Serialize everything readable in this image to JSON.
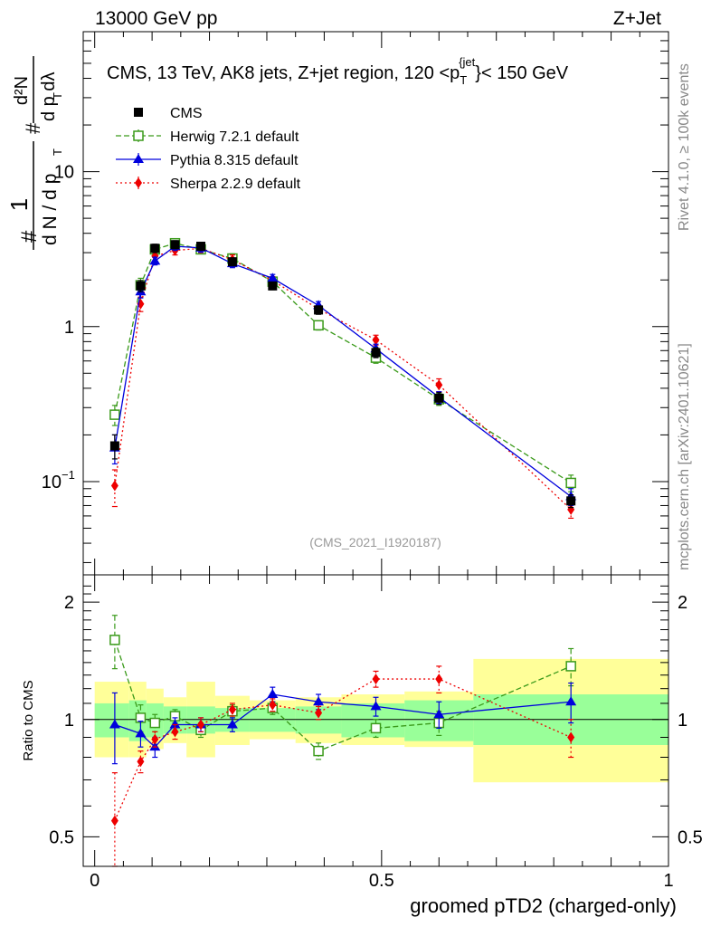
{
  "header": {
    "left": "13000 GeV pp",
    "right": "Z+Jet"
  },
  "side_text": {
    "rivet": "Rivet 4.1.0, ≥ 100k events",
    "site": "mcplots.cern.ch [arXiv:2401.10621]"
  },
  "chart_data": [
    {
      "type": "line",
      "panel": "main",
      "title": "CMS, 13 TeV, AK8 jets, Z+jet region, 120 <p_T^{jet}< 150 GeV",
      "title_parts": {
        "before": "CMS, 13 TeV, AK8 jets, Z+jet region, 120 <p",
        "sub": "T",
        "sup": "{jet",
        "after": "}< 150 GeV"
      },
      "ylabel": "1/(dN/dp_T) # d²N/(dp_T dλ)",
      "ylabel_parts": {
        "frac_num": "1",
        "frac_den": "d N / d p",
        "sub": "T",
        "hash": "#",
        "deriv_num": "d²N",
        "deriv_den": "d p  dλ"
      },
      "yscale": "log",
      "ylim": [
        0.025,
        80
      ],
      "xlim": [
        -0.02,
        1.0
      ],
      "yticks": [
        {
          "v": 0.1,
          "label": "10",
          "sup": "−1"
        },
        {
          "v": 1,
          "label": "1",
          "sup": ""
        },
        {
          "v": 10,
          "label": "10",
          "sup": ""
        }
      ],
      "watermark": "(CMS_2021_I1920187)",
      "legend_position": "top-left",
      "series": [
        {
          "name": "CMS",
          "color": "#000000",
          "marker": "square",
          "line": "none",
          "x": [
            0.035,
            0.08,
            0.105,
            0.14,
            0.185,
            0.24,
            0.31,
            0.39,
            0.49,
            0.6,
            0.83
          ],
          "y": [
            0.17,
            1.83,
            3.2,
            3.38,
            3.3,
            2.62,
            1.83,
            1.28,
            0.68,
            0.345,
            0.075
          ],
          "err": [
            0.03,
            0.15,
            0.2,
            0.2,
            0.2,
            0.15,
            0.1,
            0.08,
            0.05,
            0.03,
            0.007
          ]
        },
        {
          "name": "Herwig 7.2.1 default",
          "color": "#3a9a1a",
          "marker": "open-square",
          "line": "dashed",
          "x": [
            0.035,
            0.08,
            0.105,
            0.14,
            0.185,
            0.24,
            0.31,
            0.39,
            0.49,
            0.6,
            0.83
          ],
          "y": [
            0.27,
            1.85,
            3.15,
            3.45,
            3.15,
            2.75,
            1.95,
            1.02,
            0.63,
            0.34,
            0.098
          ],
          "err": [
            0.04,
            0.2,
            0.2,
            0.2,
            0.2,
            0.2,
            0.12,
            0.07,
            0.05,
            0.03,
            0.012
          ]
        },
        {
          "name": "Pythia 8.315 default",
          "color": "#0000dd",
          "marker": "triangle",
          "line": "solid",
          "x": [
            0.035,
            0.08,
            0.105,
            0.14,
            0.185,
            0.24,
            0.31,
            0.39,
            0.49,
            0.6,
            0.83
          ],
          "y": [
            0.165,
            1.68,
            2.65,
            3.3,
            3.22,
            2.55,
            2.05,
            1.37,
            0.72,
            0.35,
            0.08
          ],
          "err": [
            0.035,
            0.15,
            0.15,
            0.2,
            0.2,
            0.15,
            0.12,
            0.08,
            0.05,
            0.03,
            0.01
          ]
        },
        {
          "name": "Sherpa 2.2.9 default",
          "color": "#ee0000",
          "marker": "diamond",
          "line": "dotted",
          "x": [
            0.035,
            0.08,
            0.105,
            0.14,
            0.185,
            0.24,
            0.31,
            0.39,
            0.49,
            0.6,
            0.83
          ],
          "y": [
            0.094,
            1.4,
            2.85,
            3.1,
            3.2,
            2.7,
            1.98,
            1.3,
            0.82,
            0.42,
            0.066
          ],
          "err": [
            0.025,
            0.15,
            0.2,
            0.2,
            0.2,
            0.2,
            0.12,
            0.08,
            0.06,
            0.04,
            0.008
          ]
        }
      ]
    },
    {
      "type": "line",
      "panel": "ratio",
      "ylabel": "Ratio to CMS",
      "xlabel": "groomed pTD2 (charged-only)",
      "yscale": "log",
      "ylim": [
        0.42,
        2.35
      ],
      "xlim": [
        -0.02,
        1.0
      ],
      "xticks": [
        {
          "v": 0,
          "label": "0"
        },
        {
          "v": 0.5,
          "label": "0.5"
        },
        {
          "v": 1,
          "label": "1"
        }
      ],
      "yticks": [
        {
          "v": 0.5,
          "label": "0.5"
        },
        {
          "v": 1,
          "label": "1"
        },
        {
          "v": 2,
          "label": "2"
        }
      ],
      "bins": [
        0.0,
        0.06,
        0.09,
        0.12,
        0.16,
        0.21,
        0.27,
        0.35,
        0.43,
        0.54,
        0.66,
        1.0
      ],
      "band_stat": [
        [
          0.9,
          1.1
        ],
        [
          0.88,
          1.12
        ],
        [
          0.9,
          1.1
        ],
        [
          0.92,
          1.08
        ],
        [
          0.92,
          1.08
        ],
        [
          0.93,
          1.07
        ],
        [
          0.93,
          1.07
        ],
        [
          0.92,
          1.08
        ],
        [
          0.9,
          1.1
        ],
        [
          0.88,
          1.12
        ],
        [
          0.86,
          1.16
        ]
      ],
      "band_total": [
        [
          0.8,
          1.25
        ],
        [
          0.8,
          1.25
        ],
        [
          0.84,
          1.2
        ],
        [
          0.87,
          1.14
        ],
        [
          0.8,
          1.25
        ],
        [
          0.86,
          1.15
        ],
        [
          0.89,
          1.12
        ],
        [
          0.87,
          1.14
        ],
        [
          0.86,
          1.16
        ],
        [
          0.85,
          1.18
        ],
        [
          0.69,
          1.43
        ]
      ],
      "series": [
        {
          "name": "Herwig 7.2.1 default",
          "x": [
            0.035,
            0.08,
            0.105,
            0.14,
            0.185,
            0.24,
            0.31,
            0.39,
            0.49,
            0.6,
            0.83
          ],
          "y": [
            1.6,
            1.01,
            0.98,
            1.02,
            0.94,
            1.05,
            1.07,
            0.83,
            0.95,
            0.98,
            1.37
          ],
          "err": [
            0.25,
            0.08,
            0.05,
            0.04,
            0.04,
            0.04,
            0.04,
            0.04,
            0.05,
            0.07,
            0.15
          ]
        },
        {
          "name": "Pythia 8.315 default",
          "x": [
            0.035,
            0.08,
            0.105,
            0.14,
            0.185,
            0.24,
            0.31,
            0.39,
            0.49,
            0.6,
            0.83
          ],
          "y": [
            0.97,
            0.92,
            0.85,
            0.97,
            0.97,
            0.97,
            1.16,
            1.11,
            1.08,
            1.03,
            1.11
          ],
          "err": [
            0.2,
            0.07,
            0.05,
            0.04,
            0.04,
            0.04,
            0.05,
            0.05,
            0.06,
            0.08,
            0.13
          ]
        },
        {
          "name": "Sherpa 2.2.9 default",
          "x": [
            0.035,
            0.08,
            0.105,
            0.14,
            0.185,
            0.24,
            0.31,
            0.39,
            0.49,
            0.6,
            0.83
          ],
          "y": [
            0.55,
            0.78,
            0.89,
            0.93,
            0.97,
            1.06,
            1.09,
            1.04,
            1.27,
            1.27,
            0.9
          ],
          "err": [
            0.18,
            0.05,
            0.04,
            0.04,
            0.04,
            0.04,
            0.04,
            0.04,
            0.06,
            0.1,
            0.1
          ]
        }
      ]
    }
  ]
}
